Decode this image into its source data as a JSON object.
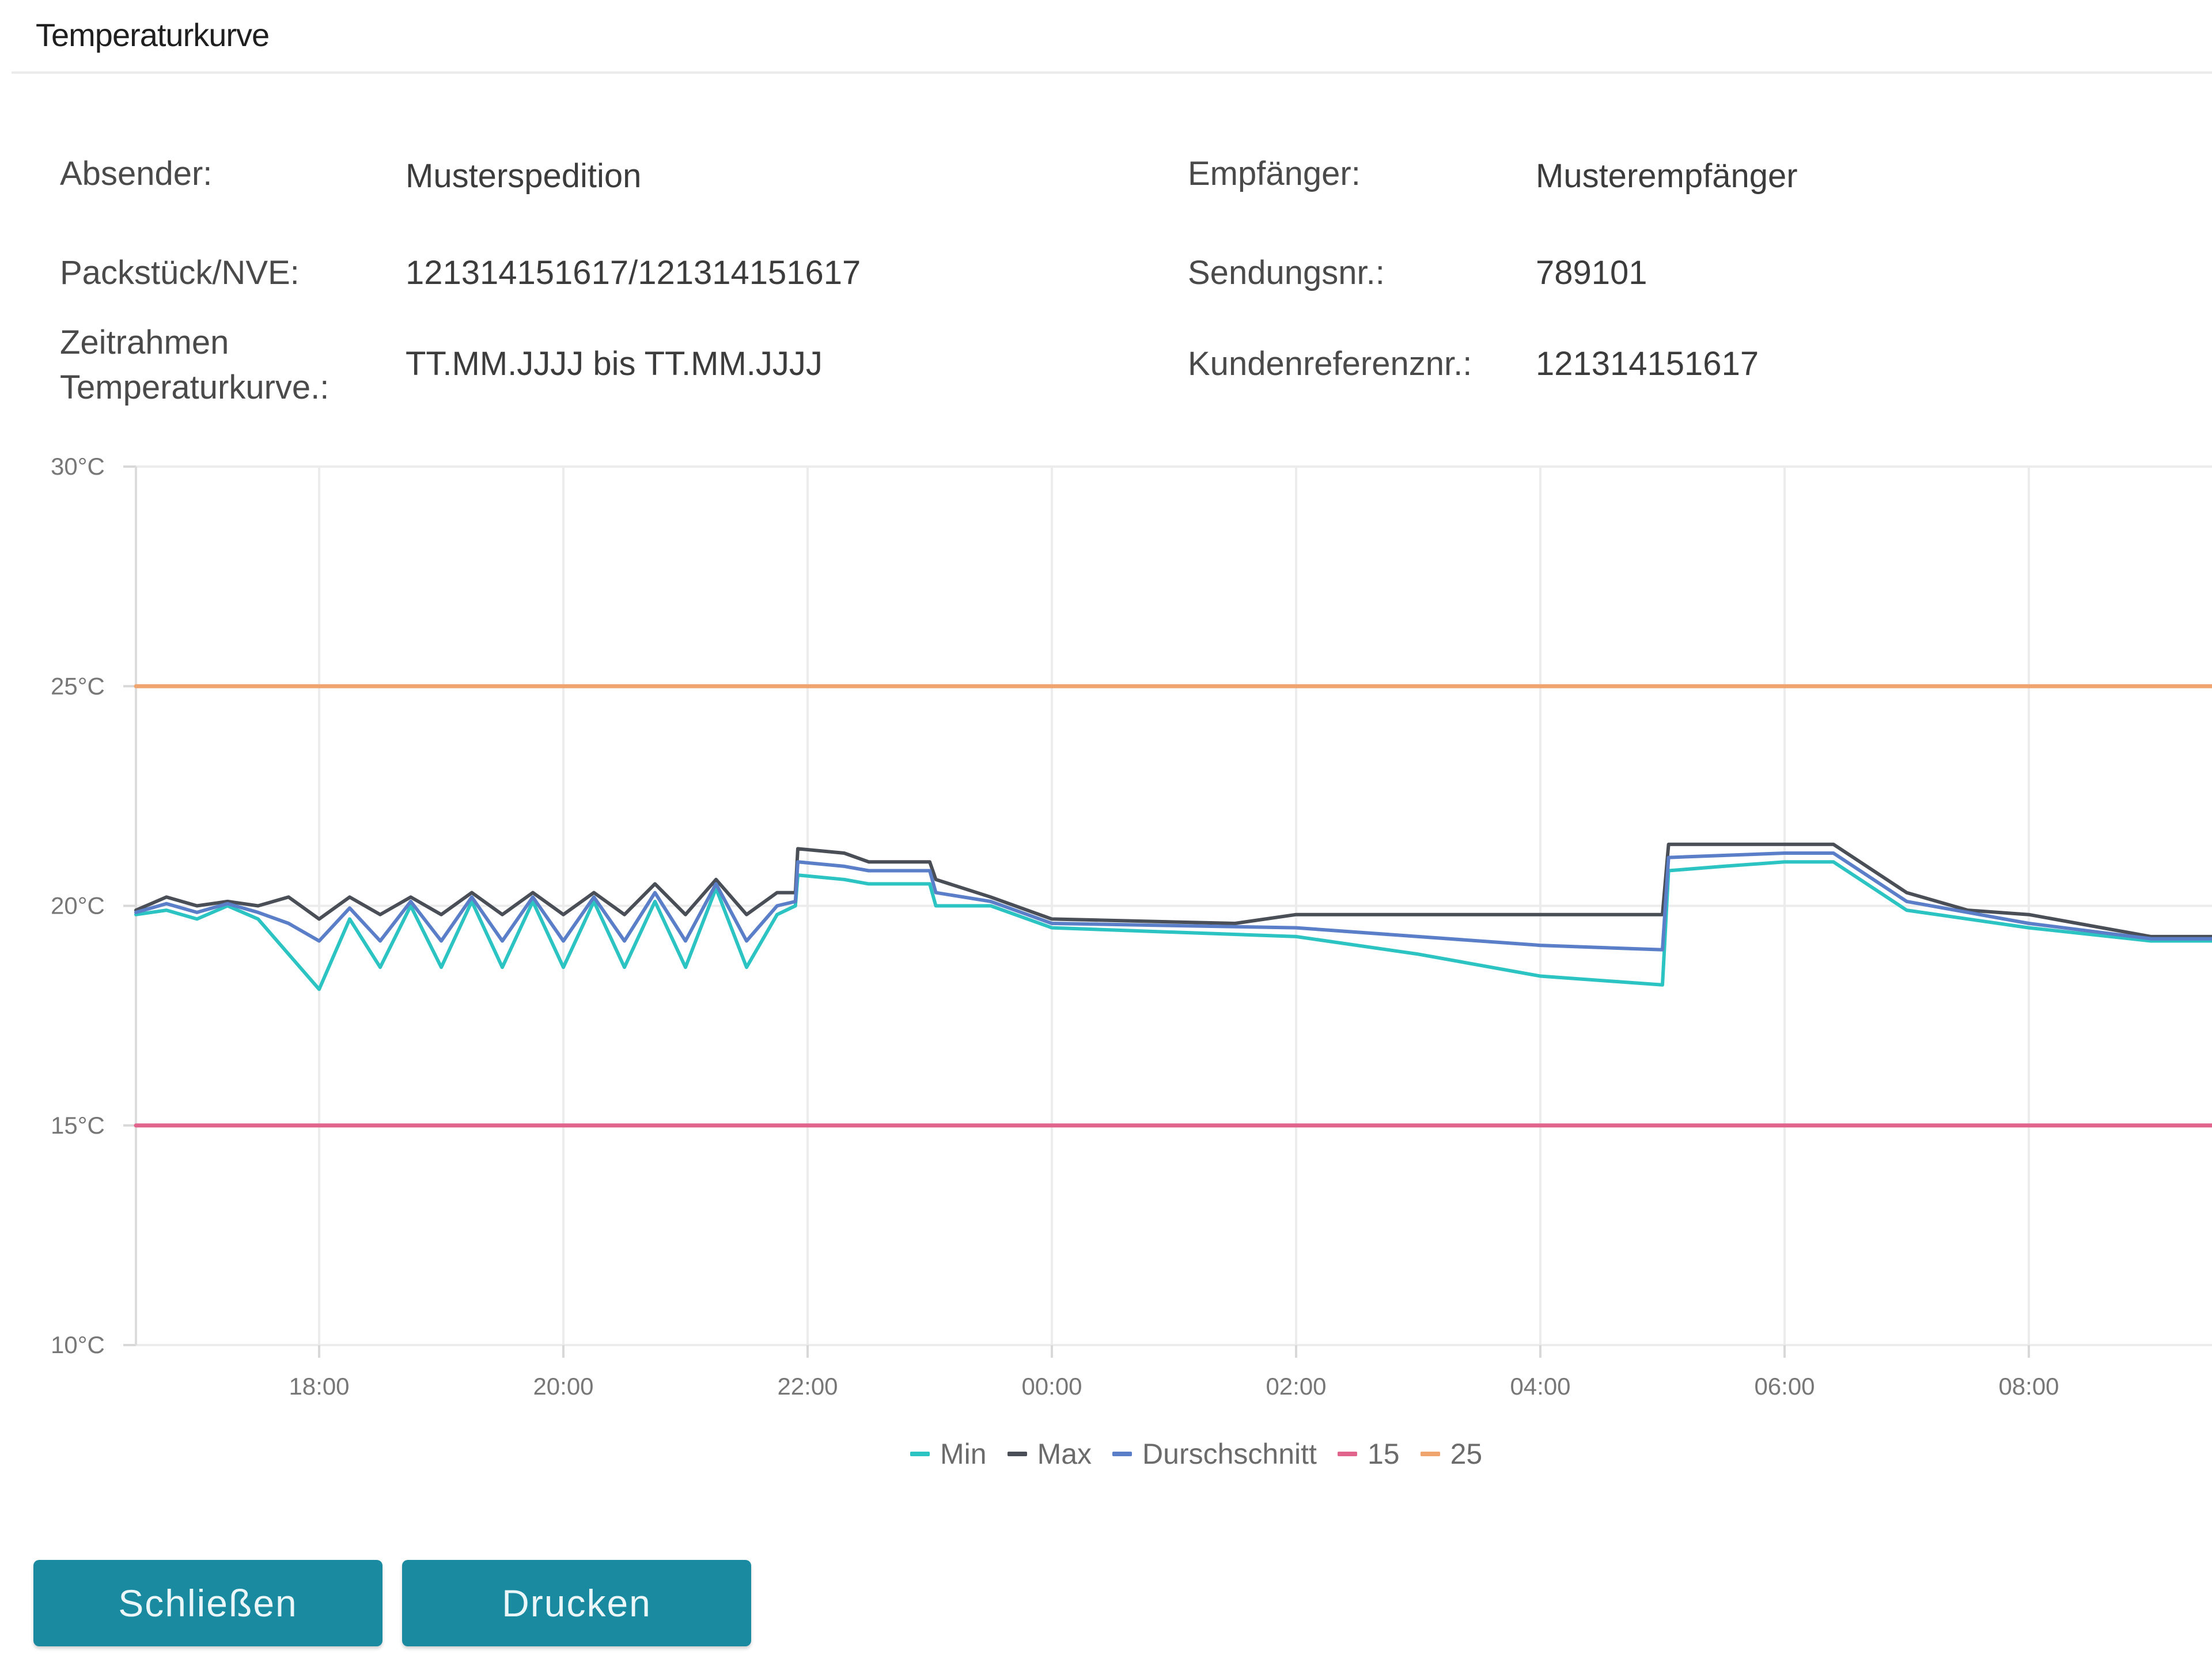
{
  "dialog": {
    "title": "Temperaturkurve"
  },
  "info": {
    "absender_label": "Absender:",
    "absender_value": "Musterspedition",
    "empfaenger_label": "Empfänger:",
    "empfaenger_value": "Musterempfänger",
    "packstueck_label": "Packstück/NVE:",
    "packstueck_value": "121314151617/121314151617",
    "sendungsnr_label": "Sendungsnr.:",
    "sendungsnr_value": "789101",
    "zeitrahmen_label": "Zeitrahmen Temperaturkurve.:",
    "zeitrahmen_value": "TT.MM.JJJJ bis TT.MM.JJJJ",
    "kundenref_label": "Kundenreferenznr.:",
    "kundenref_value": "121314151617"
  },
  "chart_data": {
    "type": "line",
    "title": "",
    "xlabel": "",
    "ylabel": "",
    "ylim": [
      10,
      30
    ],
    "xlim": [
      16.5,
      33.5
    ],
    "yticks": [
      {
        "value": 30,
        "label": "30°C"
      },
      {
        "value": 25,
        "label": "25°C"
      },
      {
        "value": 20,
        "label": "20°C"
      },
      {
        "value": 15,
        "label": "15°C"
      },
      {
        "value": 10,
        "label": "10°C"
      }
    ],
    "xticks": [
      {
        "value": 18,
        "label": "18:00"
      },
      {
        "value": 20,
        "label": "20:00"
      },
      {
        "value": 22,
        "label": "22:00"
      },
      {
        "value": 24,
        "label": "00:00"
      },
      {
        "value": 26,
        "label": "02:00"
      },
      {
        "value": 28,
        "label": "04:00"
      },
      {
        "value": 30,
        "label": "06:00"
      },
      {
        "value": 32,
        "label": "08:00"
      }
    ],
    "grid": true,
    "legend_position": "bottom",
    "series": [
      {
        "name": "Min",
        "color": "#2cc3c3",
        "x": [
          16.5,
          16.75,
          17.0,
          17.25,
          17.5,
          17.75,
          18.0,
          18.25,
          18.5,
          18.75,
          19.0,
          19.25,
          19.5,
          19.75,
          20.0,
          20.25,
          20.5,
          20.75,
          21.0,
          21.25,
          21.5,
          21.75,
          21.9,
          21.92,
          22.3,
          22.5,
          23.0,
          23.05,
          23.5,
          24.0,
          26.0,
          27.0,
          28.0,
          29.0,
          29.05,
          29.5,
          30.0,
          30.4,
          31.0,
          32.0,
          33.0,
          33.5
        ],
        "y": [
          19.8,
          19.9,
          19.7,
          20.0,
          19.7,
          18.9,
          18.1,
          19.7,
          18.6,
          20.0,
          18.6,
          20.1,
          18.6,
          20.1,
          18.6,
          20.1,
          18.6,
          20.1,
          18.6,
          20.4,
          18.6,
          19.8,
          20.0,
          20.7,
          20.6,
          20.5,
          20.5,
          20.0,
          20.0,
          19.5,
          19.3,
          18.9,
          18.4,
          18.2,
          20.8,
          20.9,
          21.0,
          21.0,
          19.9,
          19.5,
          19.2,
          19.2
        ]
      },
      {
        "name": "Max",
        "color": "#4a4f57",
        "x": [
          16.5,
          16.75,
          17.0,
          17.25,
          17.5,
          17.75,
          18.0,
          18.25,
          18.5,
          18.75,
          19.0,
          19.25,
          19.5,
          19.75,
          20.0,
          20.25,
          20.5,
          20.75,
          21.0,
          21.25,
          21.5,
          21.75,
          21.9,
          21.92,
          22.3,
          22.5,
          23.0,
          23.05,
          23.5,
          24.0,
          25.5,
          26.0,
          28.0,
          29.0,
          29.05,
          30.0,
          30.4,
          31.0,
          31.5,
          32.0,
          33.0,
          33.5
        ],
        "y": [
          19.9,
          20.2,
          20.0,
          20.1,
          20.0,
          20.2,
          19.7,
          20.2,
          19.8,
          20.2,
          19.8,
          20.3,
          19.8,
          20.3,
          19.8,
          20.3,
          19.8,
          20.5,
          19.8,
          20.6,
          19.8,
          20.3,
          20.3,
          21.3,
          21.2,
          21.0,
          21.0,
          20.6,
          20.2,
          19.7,
          19.6,
          19.8,
          19.8,
          19.8,
          21.4,
          21.4,
          21.4,
          20.3,
          19.9,
          19.8,
          19.3,
          19.3
        ]
      },
      {
        "name": "Durschschnitt",
        "color": "#5a7fc8",
        "x": [
          16.5,
          16.75,
          17.0,
          17.25,
          17.5,
          17.75,
          18.0,
          18.25,
          18.5,
          18.75,
          19.0,
          19.25,
          19.5,
          19.75,
          20.0,
          20.25,
          20.5,
          20.75,
          21.0,
          21.25,
          21.5,
          21.75,
          21.9,
          21.92,
          22.3,
          22.5,
          23.0,
          23.05,
          23.5,
          24.0,
          26.0,
          27.0,
          28.0,
          29.0,
          29.05,
          30.0,
          30.4,
          31.0,
          32.0,
          33.0,
          33.5
        ],
        "y": [
          19.85,
          20.05,
          19.85,
          20.05,
          19.85,
          19.6,
          19.2,
          19.95,
          19.2,
          20.1,
          19.2,
          20.2,
          19.2,
          20.2,
          19.2,
          20.2,
          19.2,
          20.3,
          19.2,
          20.5,
          19.2,
          20.0,
          20.1,
          21.0,
          20.9,
          20.8,
          20.8,
          20.3,
          20.1,
          19.6,
          19.5,
          19.3,
          19.1,
          19.0,
          21.1,
          21.2,
          21.2,
          20.1,
          19.6,
          19.25,
          19.25
        ]
      },
      {
        "name": "15",
        "color": "#e0648c",
        "x": [
          16.5,
          33.5
        ],
        "y": [
          15,
          15
        ]
      },
      {
        "name": "25",
        "color": "#f0a56e",
        "x": [
          16.5,
          33.5
        ],
        "y": [
          25,
          25
        ]
      }
    ]
  },
  "buttons": {
    "close_label": "Schließen",
    "print_label": "Drucken"
  }
}
